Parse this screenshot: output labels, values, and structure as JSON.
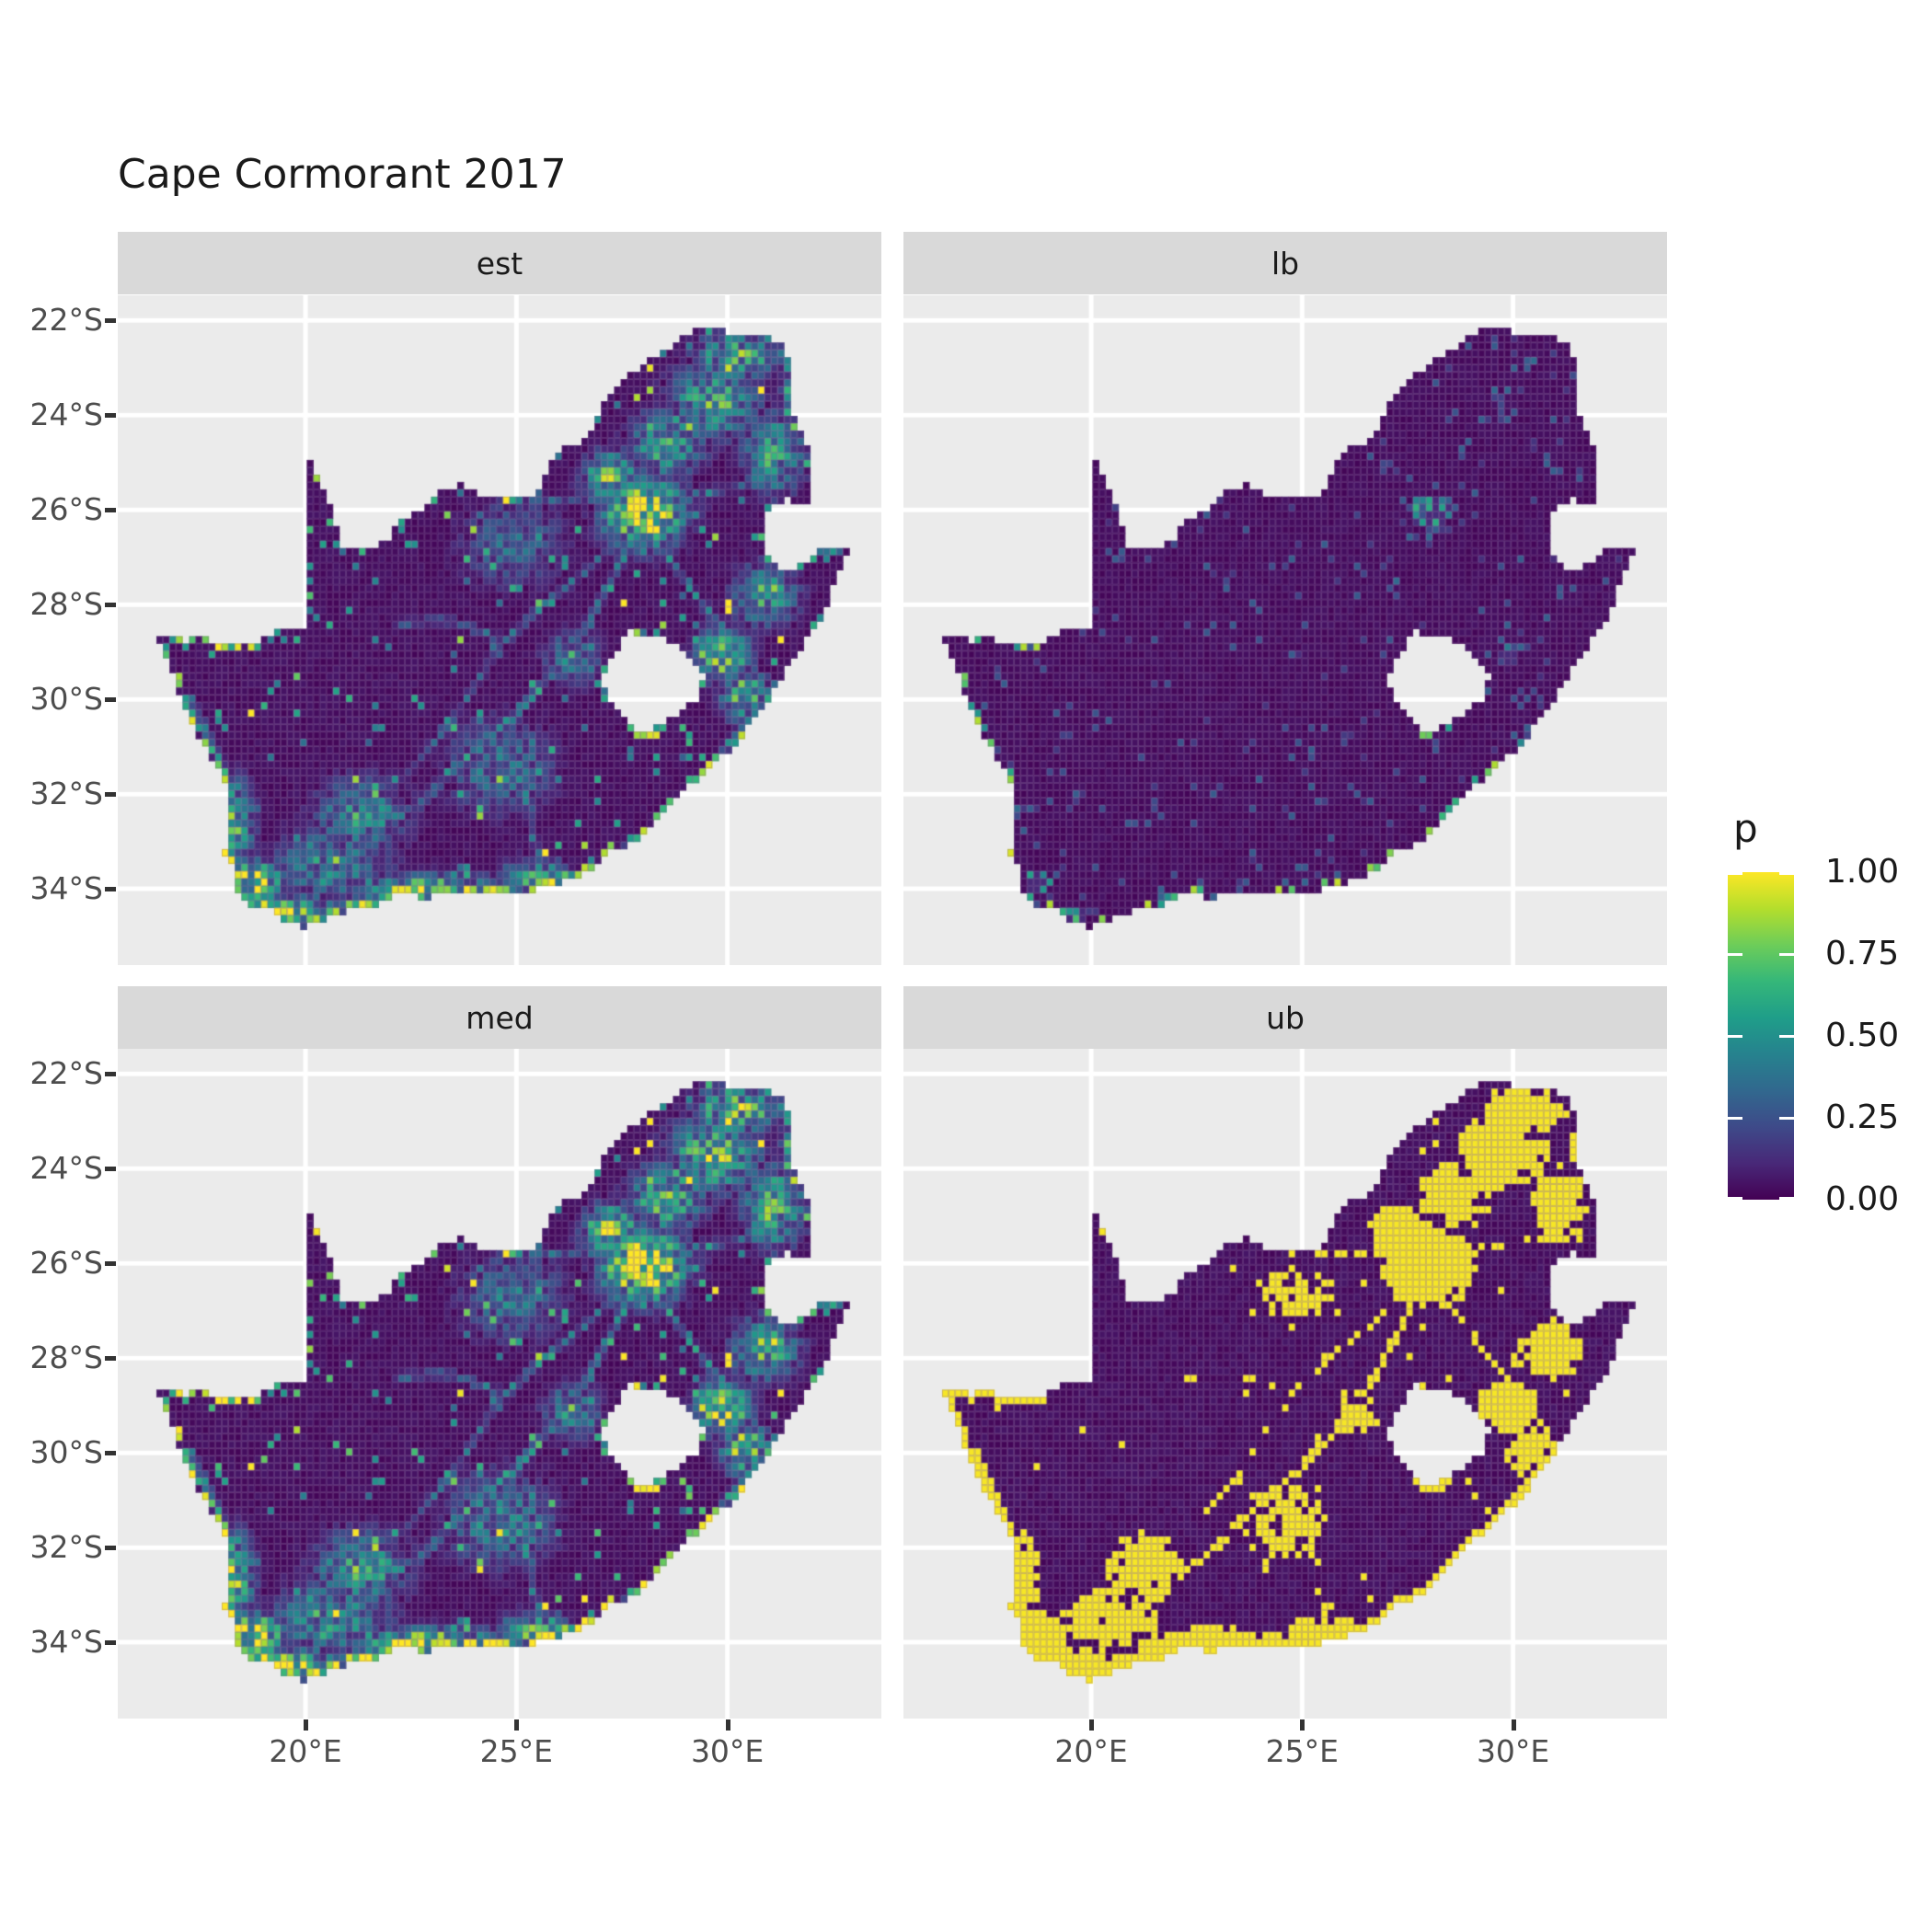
{
  "title": "Cape Cormorant 2017",
  "facets": [
    {
      "label": "est"
    },
    {
      "label": "lb"
    },
    {
      "label": "med"
    },
    {
      "label": "ub"
    }
  ],
  "axes": {
    "lat_ticks": [
      {
        "label": "22°S",
        "value": -22
      },
      {
        "label": "24°S",
        "value": -24
      },
      {
        "label": "26°S",
        "value": -26
      },
      {
        "label": "28°S",
        "value": -28
      },
      {
        "label": "30°S",
        "value": -30
      },
      {
        "label": "32°S",
        "value": -32
      },
      {
        "label": "34°S",
        "value": -34
      }
    ],
    "lon_ticks": [
      {
        "label": "20°E",
        "value": 20
      },
      {
        "label": "25°E",
        "value": 25
      },
      {
        "label": "30°E",
        "value": 30
      }
    ]
  },
  "legend": {
    "title": "p",
    "labels": [
      "1.00",
      "0.75",
      "0.50",
      "0.25",
      "0.00"
    ],
    "values": [
      1,
      0.75,
      0.5,
      0.25,
      0
    ]
  },
  "colors": {
    "panel_bg": "#EBEBEB",
    "strip_bg": "#D9D9D9",
    "gridline": "#FFFFFF",
    "axis_text": "#4D4D4D",
    "tick_mark": "#333333",
    "title_text": "#1A1A1A",
    "cell_border": "rgba(140,108,160,0.38)"
  },
  "chart_data": {
    "type": "heatmap",
    "title": "Cape Cormorant 2017",
    "subtitle": "",
    "region": "South Africa",
    "facets": [
      "est",
      "lb",
      "med",
      "ub"
    ],
    "facet_layout": [
      [
        "est",
        "lb"
      ],
      [
        "med",
        "ub"
      ]
    ],
    "legend_title": "p",
    "palette": "viridis",
    "value_range": [
      0,
      1
    ],
    "legend_tick_values": [
      0,
      0.25,
      0.5,
      0.75,
      1
    ],
    "lon_range": [
      15.55,
      33.65
    ],
    "lat_range": [
      -35.61,
      -21.47
    ],
    "lon_tick_values": [
      20,
      25,
      30
    ],
    "lat_tick_values": [
      -22,
      -24,
      -26,
      -28,
      -30,
      -32,
      -34
    ],
    "cell_size_deg": 0.155,
    "grid": "major only, white",
    "facet_summary": {
      "est": "point estimate: mostly p≈0 (dark purple) with mid/high clusters around Gauteng (27-29E, 25-27S), northeast scatter, KwaZulu-Natal, and yellow band along the south and southwest coasts; thin green road-network lines across interior",
      "lb": "lower bound: p≈0 nearly everywhere; sparse teal speckles, a small green/yellow cluster near Gauteng and bright cells along the far south coast edge",
      "med": "median: same spatial pattern as est, slightly more extensive green/yellow",
      "ub": "upper bound: near-binary, large solid yellow (p≈1) blocks over Gauteng/northeast, the eastern border strip and the south-west, yellow network lines elsewhere, rest dark purple (p≈0)"
    },
    "viridis_stops": [
      [
        0,
        "#440154"
      ],
      [
        0.111,
        "#482878"
      ],
      [
        0.222,
        "#3E4A89"
      ],
      [
        0.333,
        "#31688E"
      ],
      [
        0.444,
        "#26828E"
      ],
      [
        0.556,
        "#1F9E89"
      ],
      [
        0.667,
        "#35B779"
      ],
      [
        0.778,
        "#6DCD59"
      ],
      [
        0.889,
        "#B4DE2C"
      ],
      [
        1,
        "#FDE725"
      ]
    ],
    "south_africa_outline": [
      [
        16.45,
        -28.6
      ],
      [
        17.1,
        -28.75
      ],
      [
        17.55,
        -28.7
      ],
      [
        18.0,
        -28.9
      ],
      [
        18.55,
        -28.87
      ],
      [
        19.0,
        -28.7
      ],
      [
        19.55,
        -28.5
      ],
      [
        19.99,
        -28.43
      ],
      [
        19.99,
        -24.77
      ],
      [
        20.45,
        -25.6
      ],
      [
        20.7,
        -26.3
      ],
      [
        20.85,
        -26.82
      ],
      [
        21.35,
        -26.86
      ],
      [
        21.9,
        -26.67
      ],
      [
        22.3,
        -26.2
      ],
      [
        22.75,
        -25.95
      ],
      [
        23.25,
        -25.6
      ],
      [
        23.7,
        -25.45
      ],
      [
        24.0,
        -25.65
      ],
      [
        24.55,
        -25.78
      ],
      [
        25.1,
        -25.75
      ],
      [
        25.55,
        -25.62
      ],
      [
        25.7,
        -25.25
      ],
      [
        25.95,
        -24.75
      ],
      [
        26.45,
        -24.6
      ],
      [
        26.85,
        -24.25
      ],
      [
        27.1,
        -23.65
      ],
      [
        27.6,
        -23.2
      ],
      [
        28.05,
        -22.9
      ],
      [
        28.6,
        -22.6
      ],
      [
        29.05,
        -22.25
      ],
      [
        29.45,
        -22.16
      ],
      [
        30.0,
        -22.25
      ],
      [
        30.6,
        -22.3
      ],
      [
        31.1,
        -22.4
      ],
      [
        31.3,
        -22.42
      ],
      [
        31.55,
        -23.15
      ],
      [
        31.55,
        -23.9
      ],
      [
        31.75,
        -24.35
      ],
      [
        31.95,
        -24.85
      ],
      [
        31.98,
        -25.45
      ],
      [
        31.95,
        -25.95
      ],
      [
        31.35,
        -25.75
      ],
      [
        30.98,
        -26.0
      ],
      [
        30.82,
        -26.45
      ],
      [
        30.92,
        -26.9
      ],
      [
        31.15,
        -27.2
      ],
      [
        31.55,
        -27.31
      ],
      [
        31.95,
        -27.05
      ],
      [
        32.15,
        -26.85
      ],
      [
        32.9,
        -26.85
      ],
      [
        32.55,
        -27.55
      ],
      [
        32.3,
        -28.15
      ],
      [
        31.95,
        -28.65
      ],
      [
        31.35,
        -29.4
      ],
      [
        31.05,
        -29.87
      ],
      [
        30.6,
        -30.45
      ],
      [
        30.2,
        -30.95
      ],
      [
        29.7,
        -31.35
      ],
      [
        29.25,
        -31.7
      ],
      [
        28.75,
        -32.1
      ],
      [
        28.2,
        -32.6
      ],
      [
        27.85,
        -33.0
      ],
      [
        27.3,
        -33.15
      ],
      [
        26.7,
        -33.65
      ],
      [
        26.1,
        -33.85
      ],
      [
        25.65,
        -33.95
      ],
      [
        25.3,
        -34.05
      ],
      [
        24.6,
        -34.15
      ],
      [
        23.9,
        -34.05
      ],
      [
        23.3,
        -34.1
      ],
      [
        22.8,
        -34.2
      ],
      [
        22.2,
        -34.1
      ],
      [
        21.6,
        -34.4
      ],
      [
        20.95,
        -34.45
      ],
      [
        20.35,
        -34.7
      ],
      [
        20.0,
        -34.82
      ],
      [
        19.5,
        -34.65
      ],
      [
        19.15,
        -34.42
      ],
      [
        18.85,
        -34.4
      ],
      [
        18.45,
        -34.2
      ],
      [
        18.35,
        -34.0
      ],
      [
        18.3,
        -33.6
      ],
      [
        18.05,
        -33.2
      ],
      [
        18.25,
        -32.75
      ],
      [
        18.1,
        -32.3
      ],
      [
        18.25,
        -31.9
      ],
      [
        17.85,
        -31.4
      ],
      [
        17.55,
        -30.9
      ],
      [
        17.2,
        -30.3
      ],
      [
        16.95,
        -29.7
      ],
      [
        16.7,
        -29.1
      ]
    ],
    "lesotho_hole": [
      [
        27.7,
        -28.58
      ],
      [
        28.3,
        -28.65
      ],
      [
        28.8,
        -28.85
      ],
      [
        29.2,
        -29.15
      ],
      [
        29.45,
        -29.5
      ],
      [
        29.3,
        -29.95
      ],
      [
        28.9,
        -30.25
      ],
      [
        28.4,
        -30.55
      ],
      [
        27.95,
        -30.66
      ],
      [
        27.5,
        -30.42
      ],
      [
        27.15,
        -30.0
      ],
      [
        27.0,
        -29.55
      ],
      [
        27.25,
        -29.05
      ]
    ],
    "hotspots": [
      [
        28.05,
        -26.05,
        0.95,
        0.7,
        1.05
      ],
      [
        27.25,
        -25.3,
        0.65,
        0.5,
        0.8
      ],
      [
        28.55,
        -24.6,
        0.85,
        0.65,
        0.65
      ],
      [
        29.7,
        -23.7,
        1.05,
        0.75,
        0.65
      ],
      [
        31.1,
        -24.8,
        0.7,
        0.85,
        0.6
      ],
      [
        30.9,
        -27.8,
        0.75,
        0.65,
        0.6
      ],
      [
        29.9,
        -29.05,
        0.6,
        0.5,
        0.9
      ],
      [
        30.4,
        -29.9,
        0.55,
        0.55,
        0.7
      ],
      [
        18.75,
        -33.85,
        0.65,
        0.5,
        1.0
      ],
      [
        19.6,
        -34.55,
        1.1,
        0.4,
        0.9
      ],
      [
        22.8,
        -34.05,
        1.9,
        0.33,
        0.8
      ],
      [
        25.55,
        -33.85,
        0.85,
        0.45,
        0.65
      ],
      [
        21.3,
        -32.45,
        1.05,
        0.75,
        0.55
      ],
      [
        24.6,
        -31.4,
        1.25,
        0.95,
        0.42
      ],
      [
        26.3,
        -29.15,
        0.65,
        0.55,
        0.45
      ],
      [
        30.2,
        -22.75,
        0.95,
        0.45,
        0.7
      ],
      [
        18.3,
        -32.6,
        0.45,
        0.9,
        0.7
      ],
      [
        20.6,
        -33.5,
        1.4,
        0.8,
        0.45
      ],
      [
        31.8,
        -23.4,
        0.5,
        0.8,
        0.55
      ],
      [
        24.9,
        -26.7,
        1.2,
        0.9,
        0.35
      ]
    ],
    "roads": [
      {
        "a": 0.5,
        "w": 0.1,
        "pts": [
          [
            18.7,
            -33.65
          ],
          [
            19.9,
            -33.2
          ],
          [
            21.3,
            -32.7
          ],
          [
            22.6,
            -32.3
          ],
          [
            23.8,
            -31.2
          ],
          [
            25.0,
            -30.3
          ],
          [
            26.2,
            -29.15
          ],
          [
            26.9,
            -28.1
          ],
          [
            27.6,
            -26.9
          ],
          [
            28.0,
            -26.3
          ]
        ]
      },
      {
        "a": 0.45,
        "w": 0.09,
        "pts": [
          [
            19.0,
            -34.2
          ],
          [
            20.9,
            -34.3
          ],
          [
            22.9,
            -34.0
          ],
          [
            25.0,
            -33.95
          ],
          [
            26.5,
            -33.7
          ],
          [
            27.9,
            -33.0
          ],
          [
            28.9,
            -32.1
          ],
          [
            29.6,
            -31.4
          ],
          [
            30.7,
            -30.2
          ],
          [
            31.0,
            -29.9
          ]
        ]
      },
      {
        "a": 0.4,
        "w": 0.09,
        "pts": [
          [
            25.6,
            -33.8
          ],
          [
            25.3,
            -32.3
          ],
          [
            24.9,
            -31.0
          ]
        ]
      },
      {
        "a": 0.45,
        "w": 0.09,
        "pts": [
          [
            28.15,
            -26.4
          ],
          [
            29.1,
            -27.6
          ],
          [
            29.9,
            -28.55
          ],
          [
            30.4,
            -29.4
          ],
          [
            31.0,
            -29.85
          ]
        ]
      },
      {
        "a": 0.4,
        "w": 0.09,
        "pts": [
          [
            18.5,
            -33.3
          ],
          [
            18.4,
            -32.3
          ],
          [
            17.9,
            -31.2
          ],
          [
            17.3,
            -30.0
          ]
        ]
      },
      {
        "a": 0.38,
        "w": 0.09,
        "pts": [
          [
            28.0,
            -26.2
          ],
          [
            26.5,
            -27.4
          ],
          [
            25.3,
            -28.3
          ],
          [
            24.75,
            -28.75
          ],
          [
            23.4,
            -28.35
          ],
          [
            22.2,
            -28.4
          ]
        ]
      },
      {
        "a": 0.45,
        "w": 0.09,
        "pts": [
          [
            28.25,
            -25.6
          ],
          [
            29.0,
            -24.5
          ],
          [
            29.45,
            -23.9
          ],
          [
            29.95,
            -23.25
          ],
          [
            30.0,
            -22.35
          ]
        ]
      },
      {
        "a": 0.4,
        "w": 0.09,
        "pts": [
          [
            27.0,
            -25.75
          ],
          [
            28.3,
            -25.75
          ],
          [
            29.3,
            -25.65
          ],
          [
            30.5,
            -25.5
          ],
          [
            31.6,
            -25.4
          ]
        ]
      },
      {
        "a": 0.35,
        "w": 0.09,
        "pts": [
          [
            27.2,
            -25.7
          ],
          [
            26.2,
            -25.85
          ],
          [
            25.4,
            -25.75
          ]
        ]
      },
      {
        "a": 0.35,
        "w": 0.09,
        "pts": [
          [
            24.7,
            -28.8
          ],
          [
            23.9,
            -29.9
          ],
          [
            23.3,
            -30.6
          ],
          [
            22.5,
            -31.5
          ]
        ]
      }
    ]
  }
}
